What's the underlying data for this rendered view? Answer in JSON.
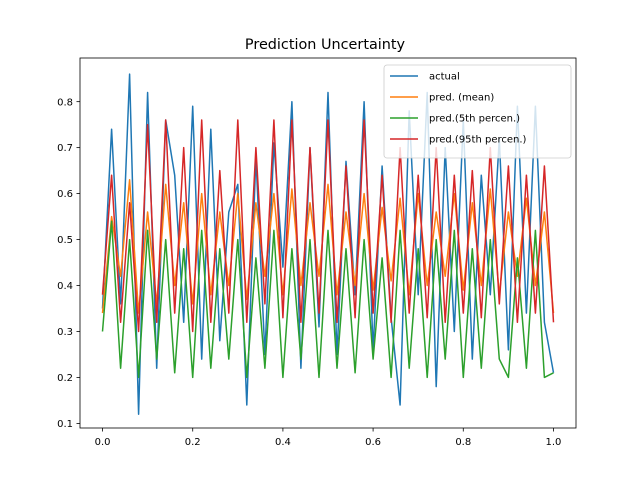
{
  "chart_data": {
    "type": "line",
    "title": "Prediction  Uncertainty",
    "xlabel": "",
    "ylabel": "",
    "xlim": [
      -0.05,
      1.05
    ],
    "ylim": [
      0.09,
      0.895
    ],
    "xticks": [
      0.0,
      0.2,
      0.4,
      0.6,
      0.8,
      1.0
    ],
    "xtick_labels": [
      "0.0",
      "0.2",
      "0.4",
      "0.6",
      "0.8",
      "1.0"
    ],
    "yticks": [
      0.1,
      0.2,
      0.3,
      0.4,
      0.5,
      0.6,
      0.7,
      0.8
    ],
    "ytick_labels": [
      "0.1",
      "0.2",
      "0.3",
      "0.4",
      "0.5",
      "0.6",
      "0.7",
      "0.8"
    ],
    "grid": false,
    "legend": "top-right",
    "series": [
      {
        "name": "actual",
        "color": "#1f77b4",
        "x": [
          0.0,
          0.02,
          0.04,
          0.06,
          0.08,
          0.1,
          0.12,
          0.14,
          0.16,
          0.18,
          0.2,
          0.22,
          0.24,
          0.26,
          0.28,
          0.3,
          0.32,
          0.34,
          0.36,
          0.38,
          0.4,
          0.42,
          0.44,
          0.46,
          0.48,
          0.5,
          0.52,
          0.54,
          0.56,
          0.58,
          0.6,
          0.62,
          0.64,
          0.66,
          0.68,
          0.7,
          0.72,
          0.74,
          0.76,
          0.78,
          0.8,
          0.82,
          0.84,
          0.86,
          0.88,
          0.9,
          0.92,
          0.94,
          0.96,
          0.98,
          1.0
        ],
        "y": [
          0.35,
          0.74,
          0.36,
          0.86,
          0.12,
          0.82,
          0.22,
          0.76,
          0.64,
          0.32,
          0.79,
          0.24,
          0.74,
          0.28,
          0.56,
          0.62,
          0.14,
          0.68,
          0.25,
          0.71,
          0.44,
          0.8,
          0.22,
          0.7,
          0.31,
          0.82,
          0.25,
          0.67,
          0.38,
          0.8,
          0.26,
          0.66,
          0.33,
          0.14,
          0.78,
          0.38,
          0.82,
          0.18,
          0.7,
          0.3,
          0.76,
          0.24,
          0.64,
          0.38,
          0.72,
          0.26,
          0.79,
          0.34,
          0.79,
          0.32,
          0.21
        ]
      },
      {
        "name": "pred. (mean)",
        "color": "#ff7f0e",
        "x": [
          0.0,
          0.02,
          0.04,
          0.06,
          0.08,
          0.1,
          0.12,
          0.14,
          0.16,
          0.18,
          0.2,
          0.22,
          0.24,
          0.26,
          0.28,
          0.3,
          0.32,
          0.34,
          0.36,
          0.38,
          0.4,
          0.42,
          0.44,
          0.46,
          0.48,
          0.5,
          0.52,
          0.54,
          0.56,
          0.58,
          0.6,
          0.62,
          0.64,
          0.66,
          0.68,
          0.7,
          0.72,
          0.74,
          0.76,
          0.78,
          0.8,
          0.82,
          0.84,
          0.86,
          0.88,
          0.9,
          0.92,
          0.94,
          0.96,
          0.98,
          1.0
        ],
        "y": [
          0.34,
          0.55,
          0.42,
          0.63,
          0.34,
          0.56,
          0.36,
          0.62,
          0.4,
          0.58,
          0.36,
          0.6,
          0.38,
          0.56,
          0.4,
          0.6,
          0.37,
          0.58,
          0.42,
          0.6,
          0.38,
          0.61,
          0.4,
          0.58,
          0.42,
          0.62,
          0.38,
          0.56,
          0.4,
          0.6,
          0.39,
          0.57,
          0.41,
          0.59,
          0.38,
          0.6,
          0.4,
          0.56,
          0.42,
          0.6,
          0.39,
          0.58,
          0.4,
          0.61,
          0.38,
          0.56,
          0.42,
          0.59,
          0.4,
          0.56,
          0.34
        ]
      },
      {
        "name": "pred.(5th percen.)",
        "color": "#2ca02c",
        "x": [
          0.0,
          0.02,
          0.04,
          0.06,
          0.08,
          0.1,
          0.12,
          0.14,
          0.16,
          0.18,
          0.2,
          0.22,
          0.24,
          0.26,
          0.28,
          0.3,
          0.32,
          0.34,
          0.36,
          0.38,
          0.4,
          0.42,
          0.44,
          0.46,
          0.48,
          0.5,
          0.52,
          0.54,
          0.56,
          0.58,
          0.6,
          0.62,
          0.64,
          0.66,
          0.68,
          0.7,
          0.72,
          0.74,
          0.76,
          0.78,
          0.8,
          0.82,
          0.84,
          0.86,
          0.88,
          0.9,
          0.92,
          0.94,
          0.96,
          0.98,
          1.0
        ],
        "y": [
          0.3,
          0.54,
          0.22,
          0.5,
          0.2,
          0.52,
          0.24,
          0.5,
          0.21,
          0.48,
          0.2,
          0.52,
          0.22,
          0.48,
          0.24,
          0.5,
          0.2,
          0.46,
          0.22,
          0.52,
          0.2,
          0.48,
          0.24,
          0.5,
          0.2,
          0.52,
          0.22,
          0.48,
          0.21,
          0.5,
          0.24,
          0.46,
          0.2,
          0.52,
          0.22,
          0.48,
          0.2,
          0.5,
          0.24,
          0.52,
          0.2,
          0.48,
          0.22,
          0.5,
          0.24,
          0.2,
          0.46,
          0.22,
          0.52,
          0.2,
          0.21
        ]
      },
      {
        "name": "pred.(95th percen.)",
        "color": "#d62728",
        "x": [
          0.0,
          0.02,
          0.04,
          0.06,
          0.08,
          0.1,
          0.12,
          0.14,
          0.16,
          0.18,
          0.2,
          0.22,
          0.24,
          0.26,
          0.28,
          0.3,
          0.32,
          0.34,
          0.36,
          0.38,
          0.4,
          0.42,
          0.44,
          0.46,
          0.48,
          0.5,
          0.52,
          0.54,
          0.56,
          0.58,
          0.6,
          0.62,
          0.64,
          0.66,
          0.68,
          0.7,
          0.72,
          0.74,
          0.76,
          0.78,
          0.8,
          0.82,
          0.84,
          0.86,
          0.88,
          0.9,
          0.92,
          0.94,
          0.96,
          0.98,
          1.0
        ],
        "y": [
          0.38,
          0.64,
          0.32,
          0.58,
          0.3,
          0.75,
          0.32,
          0.76,
          0.34,
          0.7,
          0.3,
          0.76,
          0.32,
          0.65,
          0.34,
          0.76,
          0.32,
          0.7,
          0.36,
          0.76,
          0.33,
          0.76,
          0.32,
          0.7,
          0.34,
          0.76,
          0.32,
          0.66,
          0.33,
          0.76,
          0.34,
          0.64,
          0.32,
          0.7,
          0.34,
          0.64,
          0.33,
          0.7,
          0.32,
          0.64,
          0.34,
          0.65,
          0.33,
          0.7,
          0.36,
          0.66,
          0.32,
          0.64,
          0.34,
          0.66,
          0.32
        ]
      }
    ]
  }
}
